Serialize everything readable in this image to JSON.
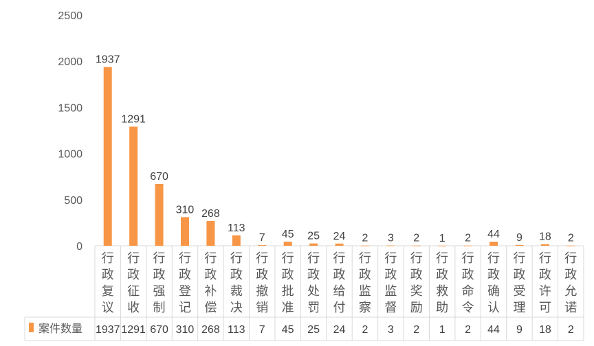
{
  "chart_data": {
    "type": "bar",
    "title": "",
    "xlabel": "",
    "ylabel": "",
    "ylim": [
      0,
      2500
    ],
    "yticks": [
      0,
      500,
      1000,
      1500,
      2000,
      2500
    ],
    "grid": false,
    "legend_placement": "data-table-left",
    "categories": [
      "行政复议",
      "行政征收",
      "行政强制",
      "行政登记",
      "行政补偿",
      "行政裁决",
      "行政撤销",
      "行政批准",
      "行政处罚",
      "行政给付",
      "行政监察",
      "行政监督",
      "行政奖励",
      "行政救助",
      "行政命令",
      "行政确认",
      "行政受理",
      "行政许可",
      "行政允诺"
    ],
    "series": [
      {
        "name": "案件数量",
        "color": "#F79646",
        "values": [
          1937,
          1291,
          670,
          310,
          268,
          113,
          7,
          45,
          25,
          24,
          2,
          3,
          2,
          1,
          2,
          44,
          9,
          18,
          2
        ]
      }
    ]
  }
}
